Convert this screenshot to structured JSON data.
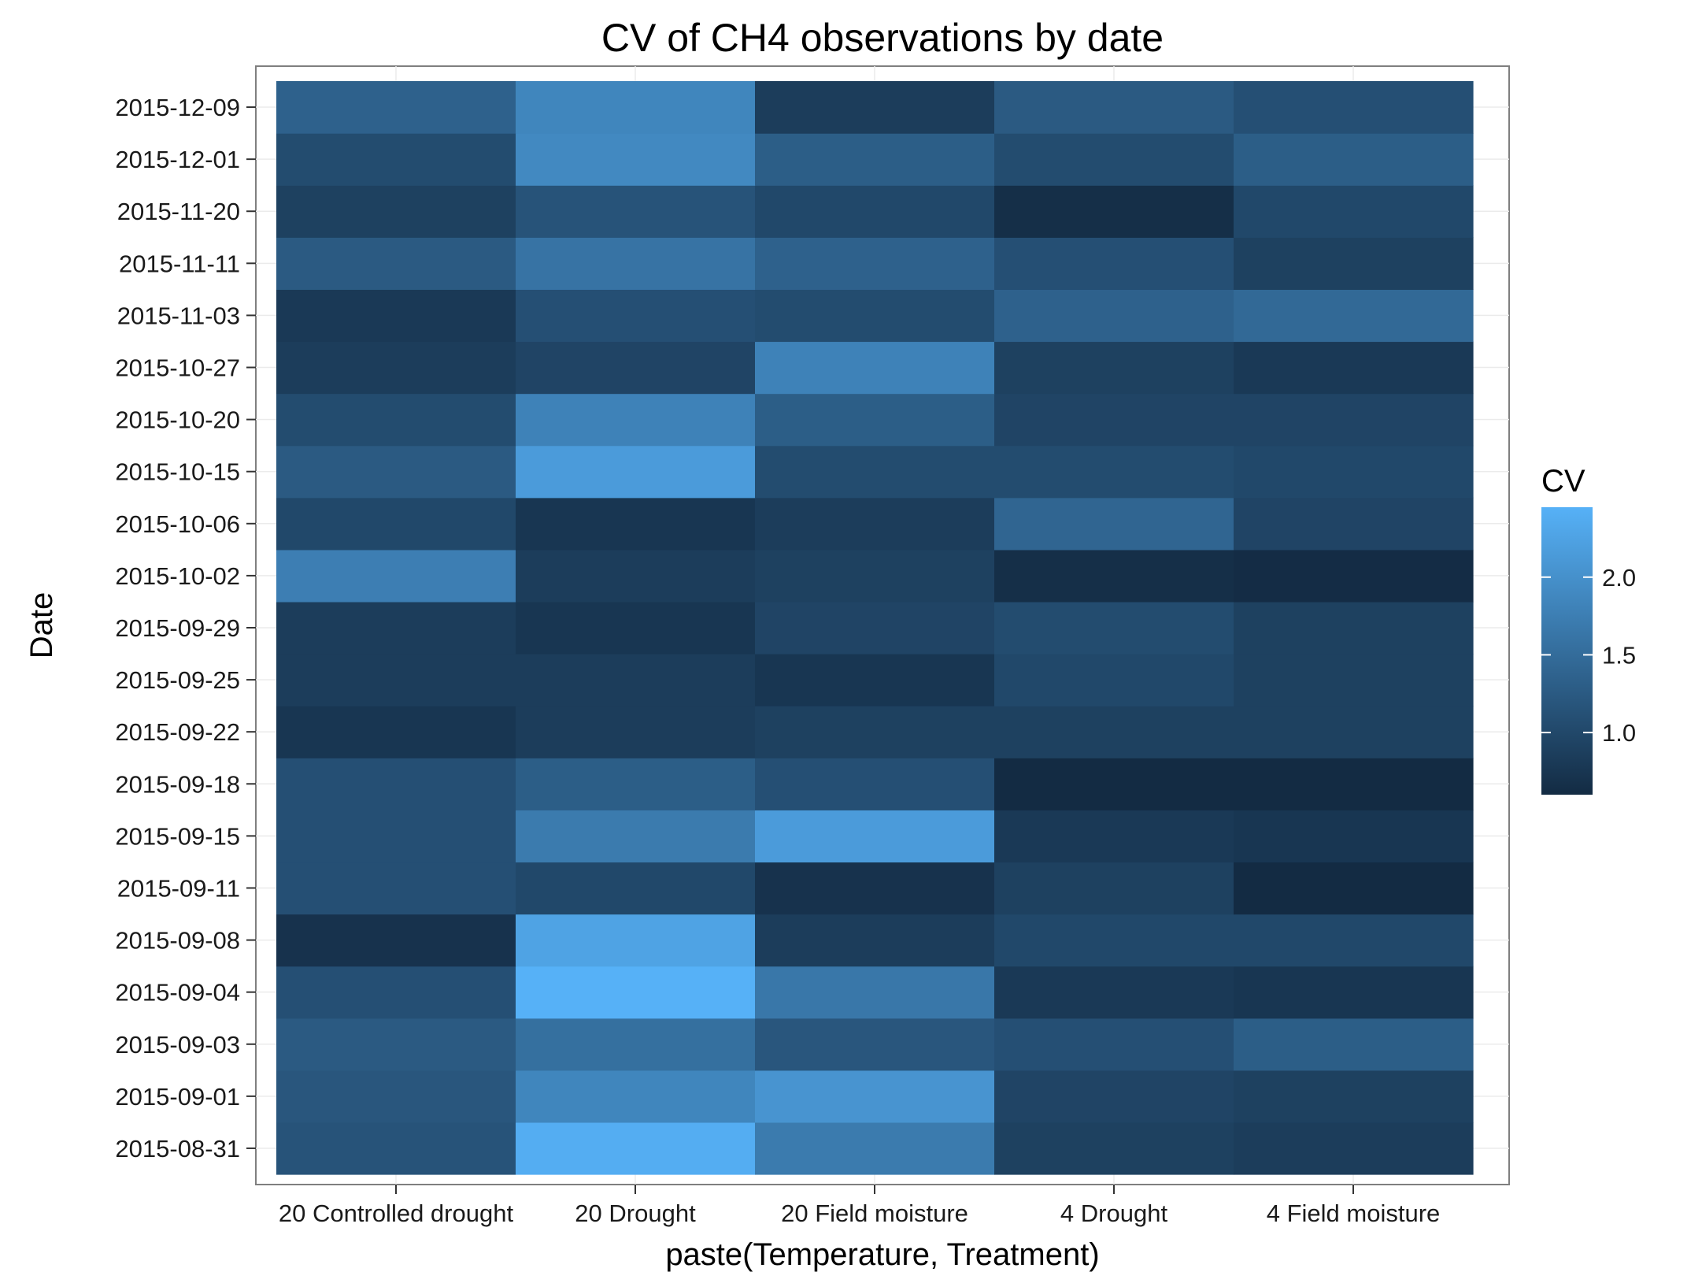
{
  "chart_data": {
    "type": "heatmap",
    "title": "CV of CH4 observations by date",
    "xlabel": "paste(Temperature, Treatment)",
    "ylabel": "Date",
    "x_categories": [
      "20 Controlled drought",
      "20 Drought",
      "20 Field moisture",
      "4 Drought",
      "4 Field moisture"
    ],
    "y_categories": [
      "2015-08-31",
      "2015-09-01",
      "2015-09-03",
      "2015-09-04",
      "2015-09-08",
      "2015-09-11",
      "2015-09-15",
      "2015-09-18",
      "2015-09-22",
      "2015-09-25",
      "2015-09-29",
      "2015-10-02",
      "2015-10-06",
      "2015-10-15",
      "2015-10-20",
      "2015-10-27",
      "2015-11-03",
      "2015-11-11",
      "2015-11-20",
      "2015-12-01",
      "2015-12-09"
    ],
    "values": [
      [
        1.15,
        2.4,
        1.7,
        0.9,
        0.85
      ],
      [
        1.2,
        1.85,
        2.05,
        0.95,
        0.9
      ],
      [
        1.25,
        1.55,
        1.2,
        1.1,
        1.3
      ],
      [
        1.1,
        2.45,
        1.65,
        0.8,
        0.75
      ],
      [
        0.7,
        2.25,
        0.85,
        1.0,
        1.0
      ],
      [
        1.1,
        1.0,
        0.7,
        0.9,
        0.6
      ],
      [
        1.1,
        1.7,
        2.15,
        0.8,
        0.75
      ],
      [
        1.1,
        1.3,
        1.1,
        0.6,
        0.6
      ],
      [
        0.75,
        0.85,
        0.9,
        0.9,
        0.9
      ],
      [
        0.85,
        0.85,
        0.75,
        1.0,
        0.9
      ],
      [
        0.85,
        0.75,
        0.95,
        1.05,
        0.9
      ],
      [
        1.75,
        0.85,
        0.9,
        0.65,
        0.62
      ],
      [
        1.0,
        0.75,
        0.85,
        1.4,
        0.95
      ],
      [
        1.25,
        2.15,
        1.05,
        1.05,
        1.0
      ],
      [
        1.05,
        1.8,
        1.3,
        0.95,
        0.95
      ],
      [
        0.85,
        0.95,
        1.8,
        0.9,
        0.8
      ],
      [
        0.8,
        1.1,
        1.05,
        1.35,
        1.45
      ],
      [
        1.25,
        1.6,
        1.35,
        1.1,
        0.9
      ],
      [
        0.9,
        1.15,
        1.0,
        0.65,
        1.0
      ],
      [
        1.05,
        1.9,
        1.3,
        1.05,
        1.3
      ],
      [
        1.35,
        1.85,
        0.85,
        1.25,
        1.1
      ]
    ],
    "colorbar": {
      "title": "CV",
      "min": 0.6,
      "max": 2.45,
      "ticks": [
        1.0,
        1.5,
        2.0
      ],
      "tick_labels": [
        "1.0",
        "1.5",
        "2.0"
      ],
      "low_color": "#132B43",
      "high_color": "#56B1F7"
    },
    "grid": true,
    "legend_position": "right"
  }
}
